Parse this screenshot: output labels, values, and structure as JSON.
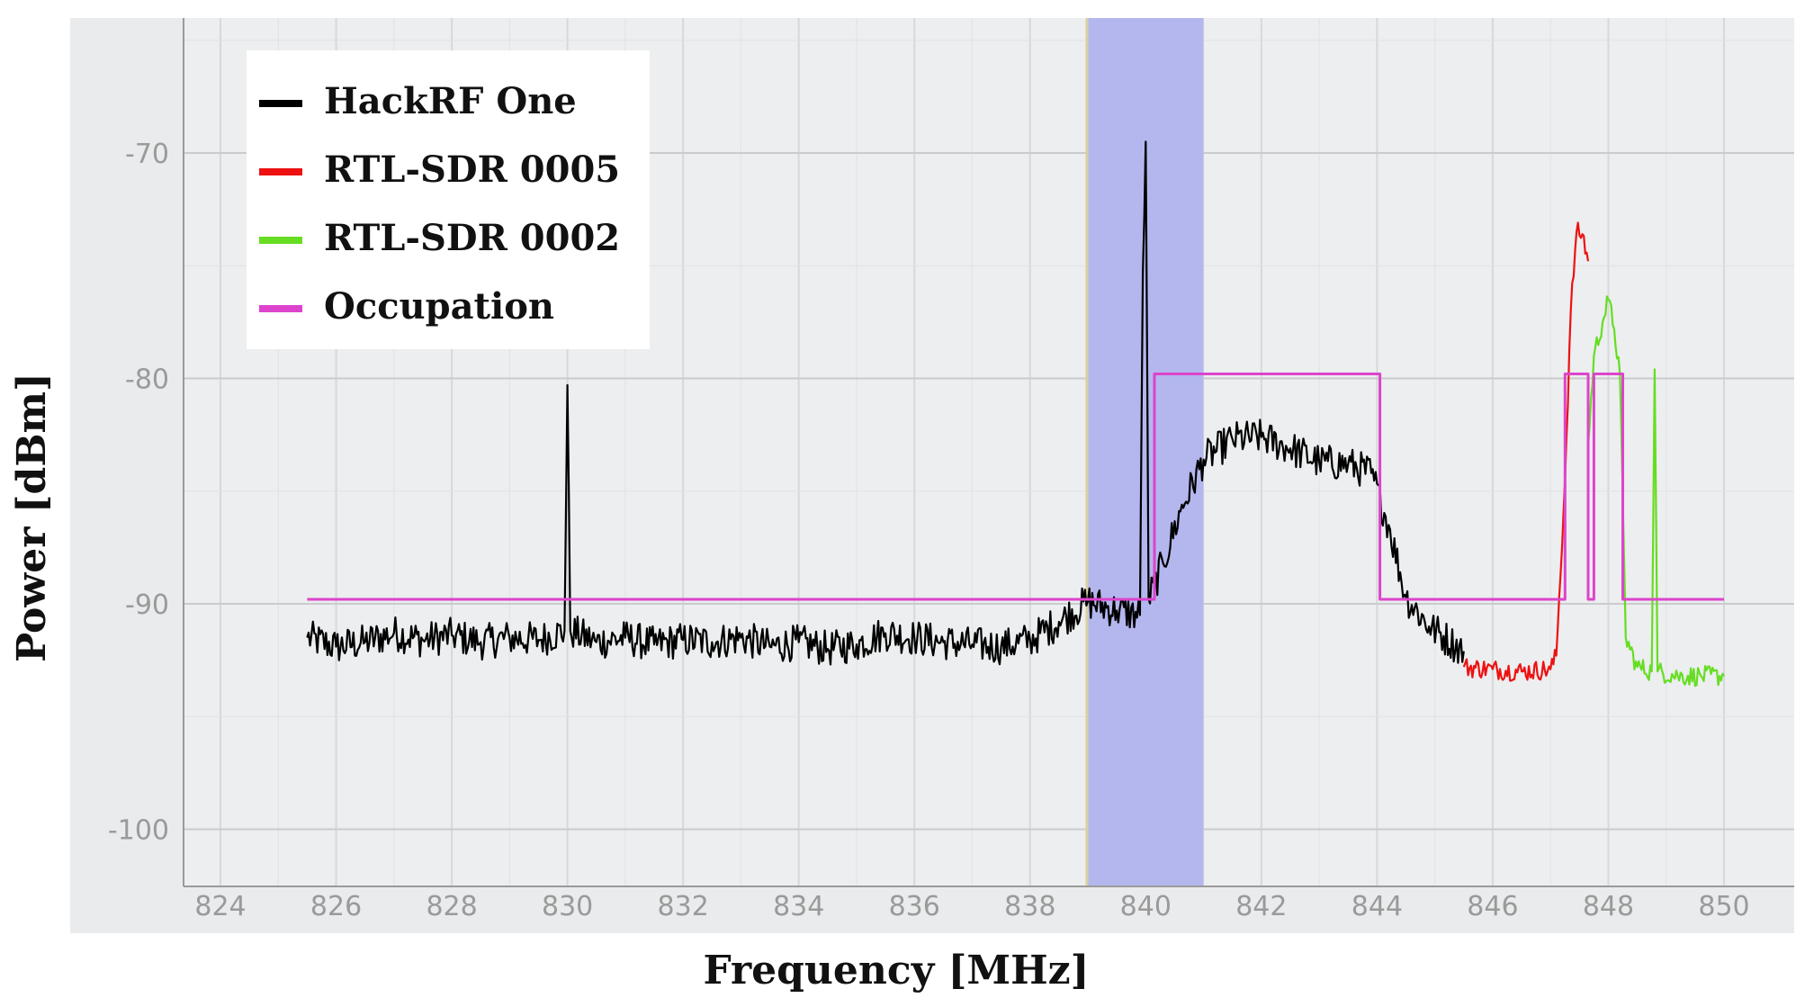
{
  "chart_data": {
    "type": "line",
    "title": "",
    "xlabel": "Frequency [MHz]",
    "ylabel": "Power [dBm]",
    "xlim": [
      823,
      851
    ],
    "ylim": [
      -102.3,
      -64
    ],
    "xticks": [
      824,
      826,
      828,
      830,
      832,
      834,
      836,
      838,
      840,
      842,
      844,
      846,
      848,
      850
    ],
    "yticks": [
      -100,
      -90,
      -80,
      -70
    ],
    "grid": true,
    "legend_position": "top-left",
    "highlight_band": {
      "x": [
        839,
        841
      ],
      "color": "#b4b7ee"
    },
    "series": [
      {
        "name": "HackRF One",
        "color": "#000000",
        "points": [
          [
            825.5,
            -91.5
          ],
          [
            826,
            -91.9
          ],
          [
            826.5,
            -91.7
          ],
          [
            827,
            -91.3
          ],
          [
            827.5,
            -91.6
          ],
          [
            828,
            -91.4
          ],
          [
            828.5,
            -91.7
          ],
          [
            829,
            -91.5
          ],
          [
            829.5,
            -91.6
          ],
          [
            829.95,
            -91.2
          ],
          [
            830.0,
            -80.3
          ],
          [
            830.05,
            -91.2
          ],
          [
            830.5,
            -91.7
          ],
          [
            831,
            -91.5
          ],
          [
            831.5,
            -91.8
          ],
          [
            832,
            -91.6
          ],
          [
            832.5,
            -91.7
          ],
          [
            833,
            -91.5
          ],
          [
            833.5,
            -91.9
          ],
          [
            834,
            -91.7
          ],
          [
            834.5,
            -92.0
          ],
          [
            835,
            -91.8
          ],
          [
            835.5,
            -91.3
          ],
          [
            836,
            -91.5
          ],
          [
            836.5,
            -91.7
          ],
          [
            837,
            -91.8
          ],
          [
            837.5,
            -91.9
          ],
          [
            838,
            -91.6
          ],
          [
            838.5,
            -90.8
          ],
          [
            839,
            -89.9
          ],
          [
            839.5,
            -90.3
          ],
          [
            839.9,
            -90.5
          ],
          [
            839.95,
            -75.3
          ],
          [
            840.0,
            -69.5
          ],
          [
            840.05,
            -89.8
          ],
          [
            840.3,
            -88.2
          ],
          [
            840.6,
            -85.9
          ],
          [
            841,
            -83.6
          ],
          [
            841.5,
            -82.7
          ],
          [
            842,
            -82.6
          ],
          [
            842.5,
            -83.1
          ],
          [
            843,
            -83.7
          ],
          [
            843.5,
            -83.8
          ],
          [
            843.9,
            -84.2
          ],
          [
            844.2,
            -86.5
          ],
          [
            844.5,
            -89.7
          ],
          [
            844.9,
            -91.0
          ],
          [
            845.5,
            -92.1
          ]
        ]
      },
      {
        "name": "RTL-SDR 0005",
        "color": "#ee1111",
        "points": [
          [
            845.5,
            -92.8
          ],
          [
            846,
            -92.9
          ],
          [
            846.5,
            -93.0
          ],
          [
            847,
            -92.9
          ],
          [
            847.1,
            -92.3
          ],
          [
            847.25,
            -84.5
          ],
          [
            847.35,
            -77.0
          ],
          [
            847.45,
            -73.5
          ],
          [
            847.55,
            -73.6
          ],
          [
            847.65,
            -74.8
          ]
        ]
      },
      {
        "name": "RTL-SDR 0002",
        "color": "#66dd22",
        "points": [
          [
            847.65,
            -83.0
          ],
          [
            847.75,
            -79.0
          ],
          [
            847.9,
            -77.5
          ],
          [
            848.0,
            -76.5
          ],
          [
            848.1,
            -77.8
          ],
          [
            848.2,
            -79.8
          ],
          [
            848.3,
            -91.5
          ],
          [
            848.5,
            -92.8
          ],
          [
            848.75,
            -93.0
          ],
          [
            848.8,
            -79.6
          ],
          [
            848.85,
            -93.0
          ],
          [
            849.2,
            -93.2
          ],
          [
            849.6,
            -93.2
          ],
          [
            850.0,
            -93.2
          ]
        ]
      },
      {
        "name": "Occupation",
        "color": "#dd44cc",
        "points": [
          [
            825.5,
            -89.8
          ],
          [
            840.15,
            -89.8
          ],
          [
            840.15,
            -79.8
          ],
          [
            844.05,
            -79.8
          ],
          [
            844.05,
            -89.8
          ],
          [
            847.25,
            -89.8
          ],
          [
            847.25,
            -79.8
          ],
          [
            847.65,
            -79.8
          ],
          [
            847.65,
            -89.8
          ],
          [
            847.75,
            -89.8
          ],
          [
            847.75,
            -79.8
          ],
          [
            848.25,
            -79.8
          ],
          [
            848.25,
            -89.8
          ],
          [
            850.0,
            -89.8
          ]
        ]
      }
    ]
  }
}
